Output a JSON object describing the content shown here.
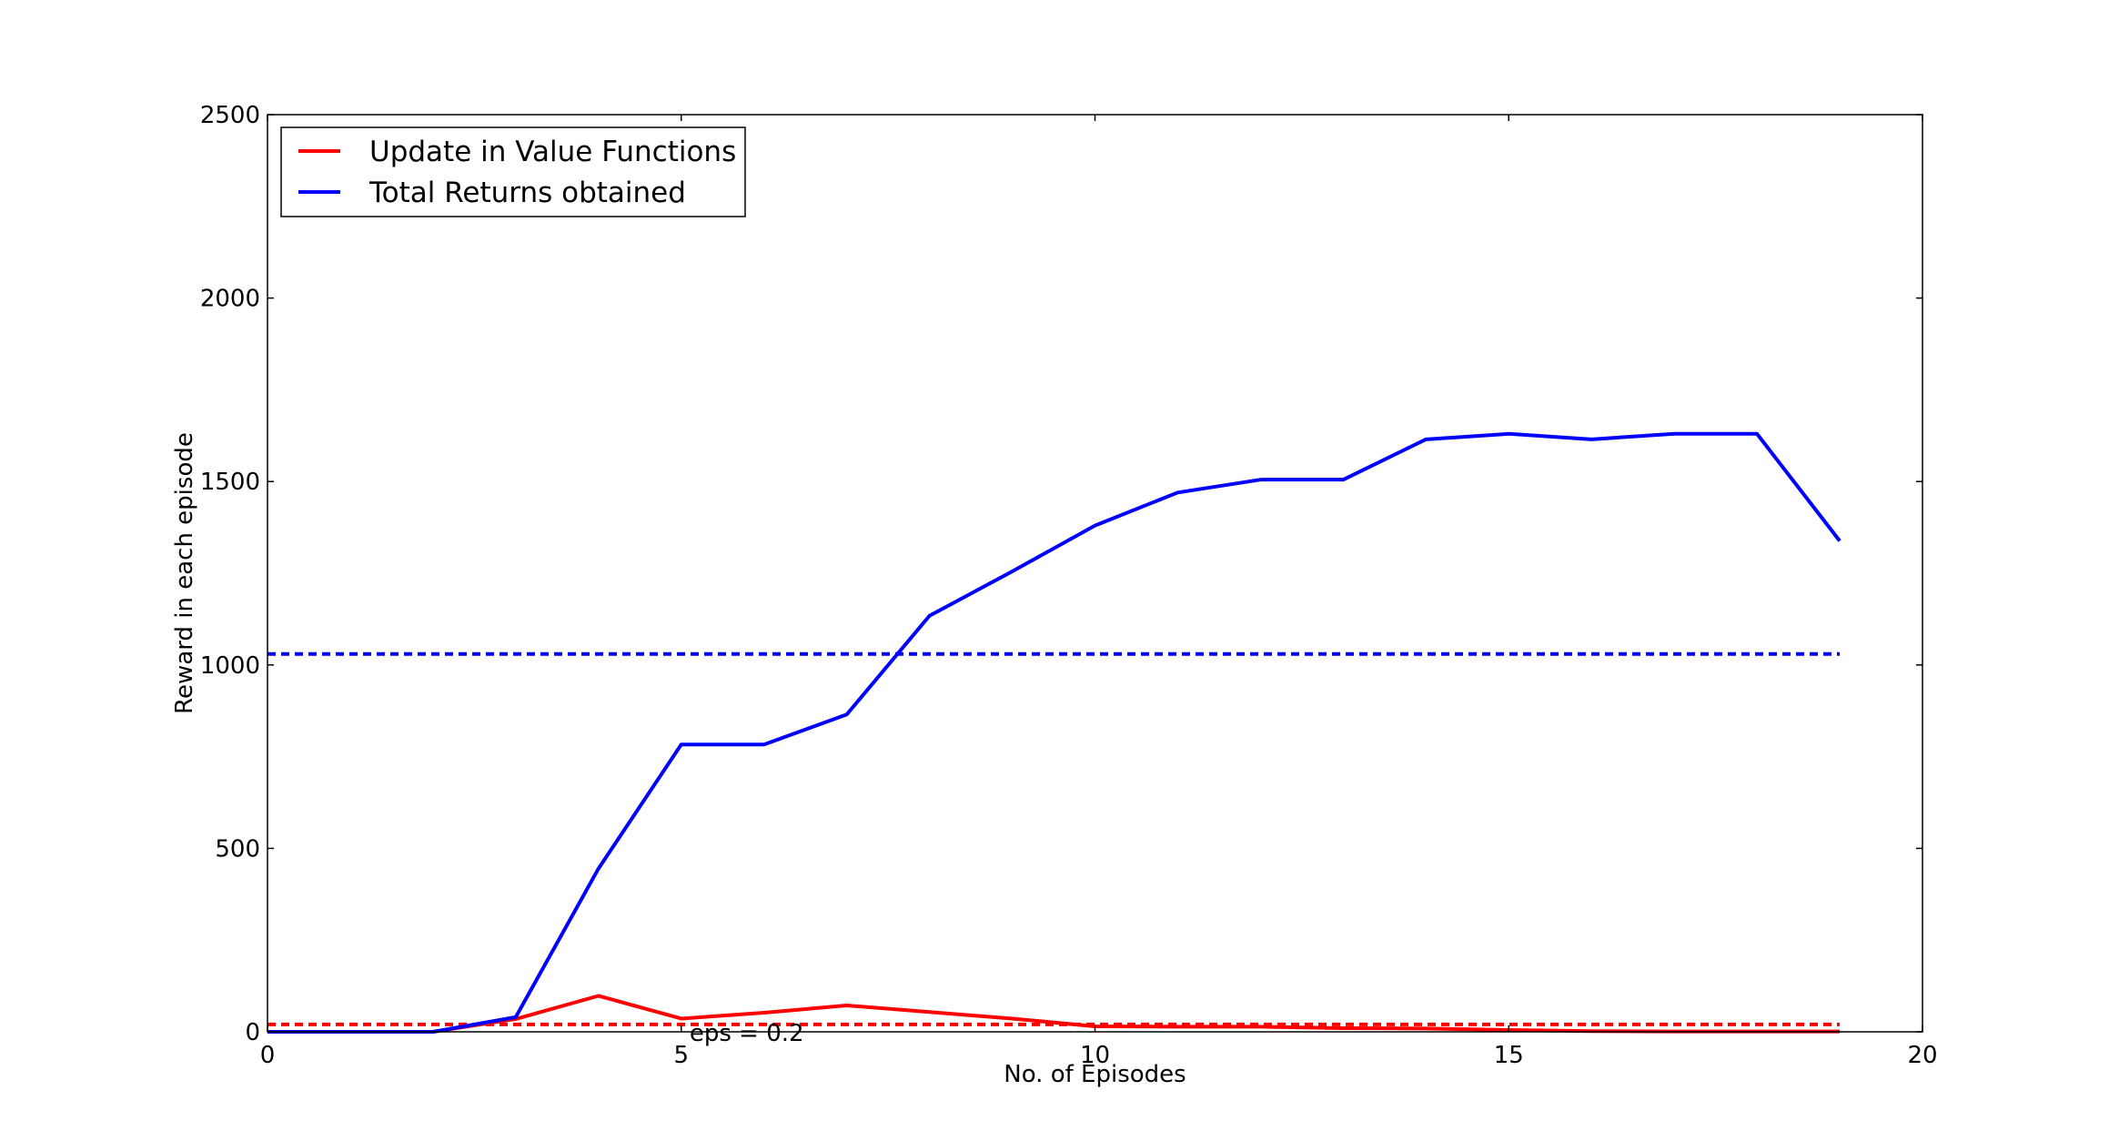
{
  "chart_data": {
    "type": "line",
    "title": "",
    "xlabel": "No. of Episodes",
    "ylabel": "Reward in each episode",
    "xlim": [
      0,
      20
    ],
    "ylim": [
      0,
      2500
    ],
    "xticks": [
      0,
      5,
      10,
      15,
      20
    ],
    "yticks": [
      0,
      500,
      1000,
      1500,
      2000,
      2500
    ],
    "xtick_labels": [
      "0",
      "5",
      "10",
      "15",
      "20"
    ],
    "ytick_labels": [
      "0",
      "500",
      "1000",
      "1500",
      "2000",
      "2500"
    ],
    "grid": false,
    "legend_position": "top-left",
    "x": [
      0,
      1,
      2,
      3,
      4,
      5,
      6,
      7,
      8,
      9,
      10,
      11,
      12,
      13,
      14,
      15,
      16,
      17,
      18,
      19
    ],
    "series": [
      {
        "name": "Update in Value Functions",
        "color": "#ff0000",
        "values": [
          0,
          0,
          0,
          35,
          98,
          36,
          52,
          72,
          54,
          36,
          15,
          14,
          14,
          10,
          9,
          5,
          2,
          1,
          1,
          1
        ]
      },
      {
        "name": "Total Returns obtained",
        "color": "#0000ff",
        "values": [
          0,
          0,
          0,
          40,
          445,
          783,
          783,
          865,
          1134,
          1255,
          1380,
          1470,
          1505,
          1505,
          1615,
          1630,
          1615,
          1630,
          1630,
          1338
        ]
      }
    ],
    "reference_lines": [
      {
        "value": 20,
        "color": "#ff0000",
        "style": "dashed",
        "x_range": [
          0,
          19
        ]
      },
      {
        "value": 1030,
        "color": "#0000ff",
        "style": "dashed",
        "x_range": [
          0,
          19
        ]
      }
    ],
    "annotations": [
      {
        "text": "eps = 0.2",
        "x": 5.1,
        "y": 0
      }
    ]
  }
}
